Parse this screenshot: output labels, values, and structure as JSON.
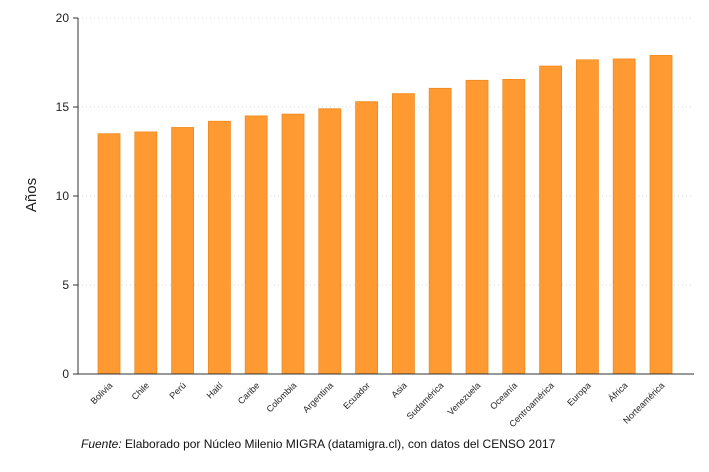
{
  "chart_data": {
    "type": "bar",
    "ylabel": "Años",
    "xlabel": "",
    "ylim": [
      0,
      20
    ],
    "yticks": [
      0,
      5,
      10,
      15,
      20
    ],
    "grid": "horizontal dotted",
    "categories": [
      "Bolivia",
      "Chile",
      "Perú",
      "Haití",
      "Caribe",
      "Colombia",
      "Argentina",
      "Ecuador",
      "Asia",
      "Sudamérica",
      "Venezuela",
      "Oceanía",
      "Centroamérica",
      "Europa",
      "África",
      "Norteamérica"
    ],
    "values": [
      13.5,
      13.6,
      13.85,
      14.2,
      14.5,
      14.6,
      14.9,
      15.3,
      15.75,
      16.05,
      16.5,
      16.55,
      17.3,
      17.65,
      17.7,
      17.9
    ],
    "bar_color": "#FF9A33",
    "bar_stroke": "#F08A1E"
  },
  "footer": {
    "source_lead": "Fuente:",
    "source_text": " Elaborado por Núcleo Milenio MIGRA (datamigra.cl), con datos del CENSO 2017"
  }
}
